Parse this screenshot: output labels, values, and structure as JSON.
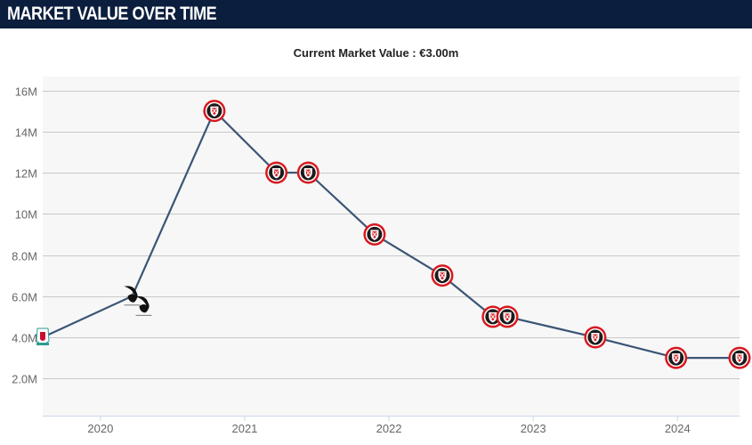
{
  "header": {
    "title": "MARKET VALUE OVER TIME"
  },
  "subtitle": {
    "prefix": "Current Market Value : ",
    "value": "€3.00m"
  },
  "colors": {
    "header_bg": "#0b1e3d",
    "line": "#3b5575",
    "plot_bg": "#f7f7f7",
    "grid": "#c8c8c8",
    "axis": "#ccd6eb",
    "badge_red": "#d71920"
  },
  "chart_data": {
    "type": "line",
    "title": "",
    "xlabel": "",
    "ylabel": "",
    "ylim": [
      0,
      16
    ],
    "xlim": [
      2019.6,
      2024.43
    ],
    "y_ticks": [
      2,
      4,
      6,
      8,
      10,
      12,
      14,
      16
    ],
    "y_tick_labels": [
      "2.0M",
      "4.0M",
      "6.0M",
      "8.0M",
      "10M",
      "12M",
      "14M",
      "16M"
    ],
    "x_ticks": [
      2020,
      2021,
      2022,
      2023,
      2024
    ],
    "x_tick_labels": [
      "2020",
      "2021",
      "2022",
      "2023",
      "2024"
    ],
    "grid": true,
    "series": [
      {
        "values_unit": "M €",
        "points": [
          {
            "x": 2019.6,
            "y": 4,
            "club_icon": "liverpool-crest-icon"
          },
          {
            "x": 2020.22,
            "y": 6,
            "club_icon": "swansea-crest-icon"
          },
          {
            "x": 2020.3,
            "y": 5.5,
            "club_icon": "swansea-crest-icon"
          },
          {
            "x": 2020.79,
            "y": 15,
            "club_icon": "sheffield-united-crest-icon"
          },
          {
            "x": 2021.22,
            "y": 12,
            "club_icon": "sheffield-united-crest-icon"
          },
          {
            "x": 2021.44,
            "y": 12,
            "club_icon": "sheffield-united-crest-icon"
          },
          {
            "x": 2021.9,
            "y": 9,
            "club_icon": "sheffield-united-crest-icon"
          },
          {
            "x": 2022.37,
            "y": 7,
            "club_icon": "sheffield-united-crest-icon"
          },
          {
            "x": 2022.72,
            "y": 5,
            "club_icon": "sheffield-united-crest-icon"
          },
          {
            "x": 2022.82,
            "y": 5,
            "club_icon": "sheffield-united-crest-icon"
          },
          {
            "x": 2023.43,
            "y": 4,
            "club_icon": "sheffield-united-crest-icon"
          },
          {
            "x": 2023.99,
            "y": 3,
            "club_icon": "sheffield-united-crest-icon"
          },
          {
            "x": 2024.43,
            "y": 3,
            "club_icon": "sheffield-united-crest-icon"
          }
        ]
      }
    ]
  }
}
